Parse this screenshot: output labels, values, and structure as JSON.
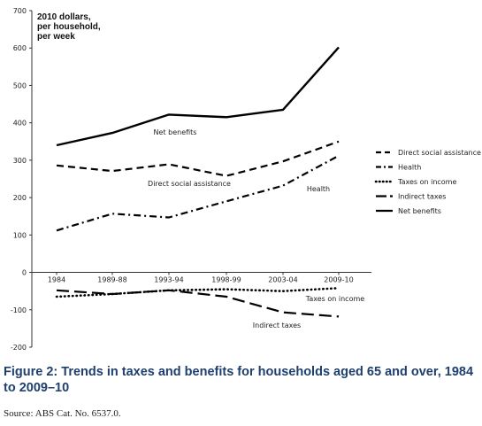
{
  "chart_data": {
    "type": "line",
    "ylabel_lines": [
      "2010 dollars,",
      "per household,",
      "per week"
    ],
    "ylim": [
      -200,
      700
    ],
    "yticks": [
      -200,
      -100,
      0,
      100,
      200,
      300,
      400,
      500,
      600,
      700
    ],
    "x": [
      "1984",
      "1989-88",
      "1993-94",
      "1998-99",
      "2003-04",
      "2009-10"
    ],
    "series": [
      {
        "name": "Direct social assistance",
        "style": "dash",
        "values": [
          286,
          271,
          289,
          258,
          297,
          350
        ],
        "label": "Direct social assistance"
      },
      {
        "name": "Health",
        "style": "dashdot",
        "values": [
          112,
          157,
          147,
          190,
          232,
          312
        ],
        "label": "Health"
      },
      {
        "name": "Taxes on income",
        "style": "dot",
        "values": [
          -65,
          -58,
          -48,
          -45,
          -50,
          -42
        ],
        "label": "Taxes on income"
      },
      {
        "name": "Indirect taxes",
        "style": "longdash",
        "values": [
          -48,
          -58,
          -48,
          -65,
          -107,
          -118
        ],
        "label": "Indirect taxes"
      },
      {
        "name": "Net benefits",
        "style": "solid",
        "values": [
          340,
          373,
          422,
          415,
          435,
          602
        ],
        "label": "Net benefits"
      }
    ],
    "legend_position": "right",
    "grid": false
  },
  "caption": "Figure 2: Trends in taxes and benefits for households aged 65 and over, 1984 to 2009–10",
  "source": "Source: ABS Cat. No. 6537.0."
}
